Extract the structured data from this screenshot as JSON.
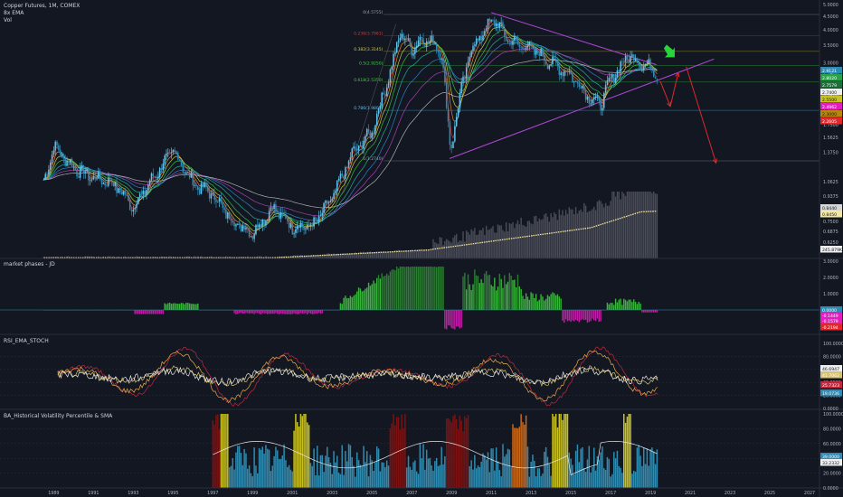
{
  "header": {
    "title": "Copper Futures, 1M, COMEX",
    "indicator1": "8x EMA",
    "indicator2": "Vol"
  },
  "panes": {
    "phases_label": "market phases - JD",
    "rsi_label": "RSI_EMA_STOCH",
    "hv_label": "BA_Historical Volatility Percentile & SMA"
  },
  "colors": {
    "background": "#131722",
    "candle_up": "#5ec3e8",
    "candle_down": "#2d8bb6",
    "fib_line": "#3a3e4a",
    "channel": "#b24ad8",
    "arrow_green": "#27d43a",
    "arrow_red": "#e0282c",
    "phase_green": "#3ed23e",
    "phase_magenta": "#e21ebf",
    "rsi_red": "#c1283e",
    "rsi_yellow": "#d6c370",
    "hv_blue": "#2f8bb0",
    "hv_yellow": "#c9c121",
    "hv_maroon": "#7a1212",
    "hv_orange": "#c8681a"
  },
  "chart_data": [
    {
      "type": "candlestick",
      "pane": "price",
      "x_axis_labels": [
        "1989",
        "1991",
        "1993",
        "1995",
        "1997",
        "1999",
        "2001",
        "2003",
        "2005",
        "2007",
        "2009",
        "2011",
        "2013",
        "2015",
        "2017",
        "2019",
        "2021",
        "2023",
        "2025",
        "2027"
      ],
      "y_axis_labels": [
        "5.0000",
        "4.5000",
        "4.0000",
        "3.5000",
        "3.0000",
        "2.7400",
        "2.5000",
        "2.2500",
        "2.0000",
        "1.7500",
        "1.5625",
        "1.3750",
        "1.0625",
        "0.9375",
        "0.8125",
        "0.7500",
        "0.6875",
        "0.6250",
        "0.5625"
      ],
      "price_badges": [
        {
          "label": "2.9121",
          "color": "#2d8bb6"
        },
        {
          "label": "2.8020",
          "color": "#27a34a"
        },
        {
          "label": "2.7579",
          "color": "#1e6f3a"
        },
        {
          "label": "2.7400",
          "color": "#eeeeee"
        },
        {
          "label": "2.5500",
          "color": "#c9c121"
        },
        {
          "label": "2.4962",
          "color": "#e21ebf"
        },
        {
          "label": "2.3000",
          "color": "#b8860b"
        },
        {
          "label": "2.2605",
          "color": "#e0282c"
        },
        {
          "label": "0.8440",
          "color": "#d6d6d6"
        },
        {
          "label": "0.8450",
          "color": "#f5e7a0"
        },
        {
          "label": "245.879K",
          "color": "#eeeeee"
        }
      ],
      "fib_levels": [
        {
          "label": "0(4.5755)",
          "color": "#9aa0ab"
        },
        {
          "label": "0.236(3.7961)",
          "color": "#d63a3a"
        },
        {
          "label": "0.382(3.3145)",
          "color": "#d7c84a"
        },
        {
          "label": "0.5(2.9250)",
          "color": "#3ed23e"
        },
        {
          "label": "0.618(2.5350)",
          "color": "#3ed23e"
        },
        {
          "label": "0.786(1.9805)",
          "color": "#5ec3e8"
        },
        {
          "label": "1(1.2740)",
          "color": "#9aa0ab"
        }
      ],
      "series": [
        {
          "name": "Copper Futures",
          "x": [
            1988.5,
            1989,
            1990,
            1991,
            1992,
            1993,
            1994,
            1995,
            1996,
            1997,
            1998,
            1999,
            2000,
            2001,
            2002,
            2003,
            2004,
            2005,
            2006,
            2006.4,
            2007,
            2007.5,
            2008,
            2008.5,
            2008.95,
            2009.5,
            2010,
            2011.1,
            2011.5,
            2012,
            2013,
            2014,
            2015,
            2016,
            2016.5,
            2017,
            2017.9,
            2018.5,
            2019.1,
            2019.4
          ],
          "y": [
            1.05,
            1.45,
            1.2,
            1.1,
            1.05,
            0.85,
            1.1,
            1.4,
            1.05,
            0.95,
            0.75,
            0.68,
            0.85,
            0.72,
            0.72,
            0.92,
            1.35,
            1.65,
            2.9,
            3.9,
            3.4,
            3.7,
            3.6,
            3.3,
            1.4,
            2.4,
            3.4,
            4.4,
            4.0,
            3.6,
            3.4,
            3.0,
            2.7,
            2.2,
            2.1,
            2.6,
            3.2,
            3.0,
            2.85,
            2.72
          ]
        }
      ]
    },
    {
      "type": "histogram",
      "pane": "market phases - JD",
      "y_axis_labels": [
        "3.0000",
        "2.0000",
        "1.0000",
        "0.0000"
      ],
      "badges": [
        {
          "label": "0.0000",
          "color": "#2d8bb6"
        },
        {
          "label": "-0.1449",
          "color": "#e21ebf"
        },
        {
          "label": "-0.1579",
          "color": "#e21ebf"
        },
        {
          "label": "-0.2194",
          "color": "#e0282c"
        }
      ]
    },
    {
      "type": "line",
      "pane": "RSI_EMA_STOCH",
      "y_axis_labels": [
        "100.0000",
        "80.0000",
        "60.0000",
        "40.0000",
        "20.0000",
        "0.0000"
      ],
      "badges": [
        {
          "label": "46.6947",
          "color": "#eeeeee"
        },
        {
          "label": "41.7062",
          "color": "#d6c370"
        },
        {
          "label": "25.7323",
          "color": "#c1283e"
        },
        {
          "label": "19.0736",
          "color": "#2d8bb6"
        }
      ]
    },
    {
      "type": "bar",
      "pane": "BA_Historical Volatility Percentile & SMA",
      "y_axis_labels": [
        "100.0000",
        "80.0000",
        "60.0000",
        "40.0000",
        "20.0000",
        "0.0000"
      ],
      "badges": [
        {
          "label": "39.0000",
          "color": "#2d8bb6"
        },
        {
          "label": "33.2332",
          "color": "#eeeeee"
        }
      ]
    }
  ]
}
